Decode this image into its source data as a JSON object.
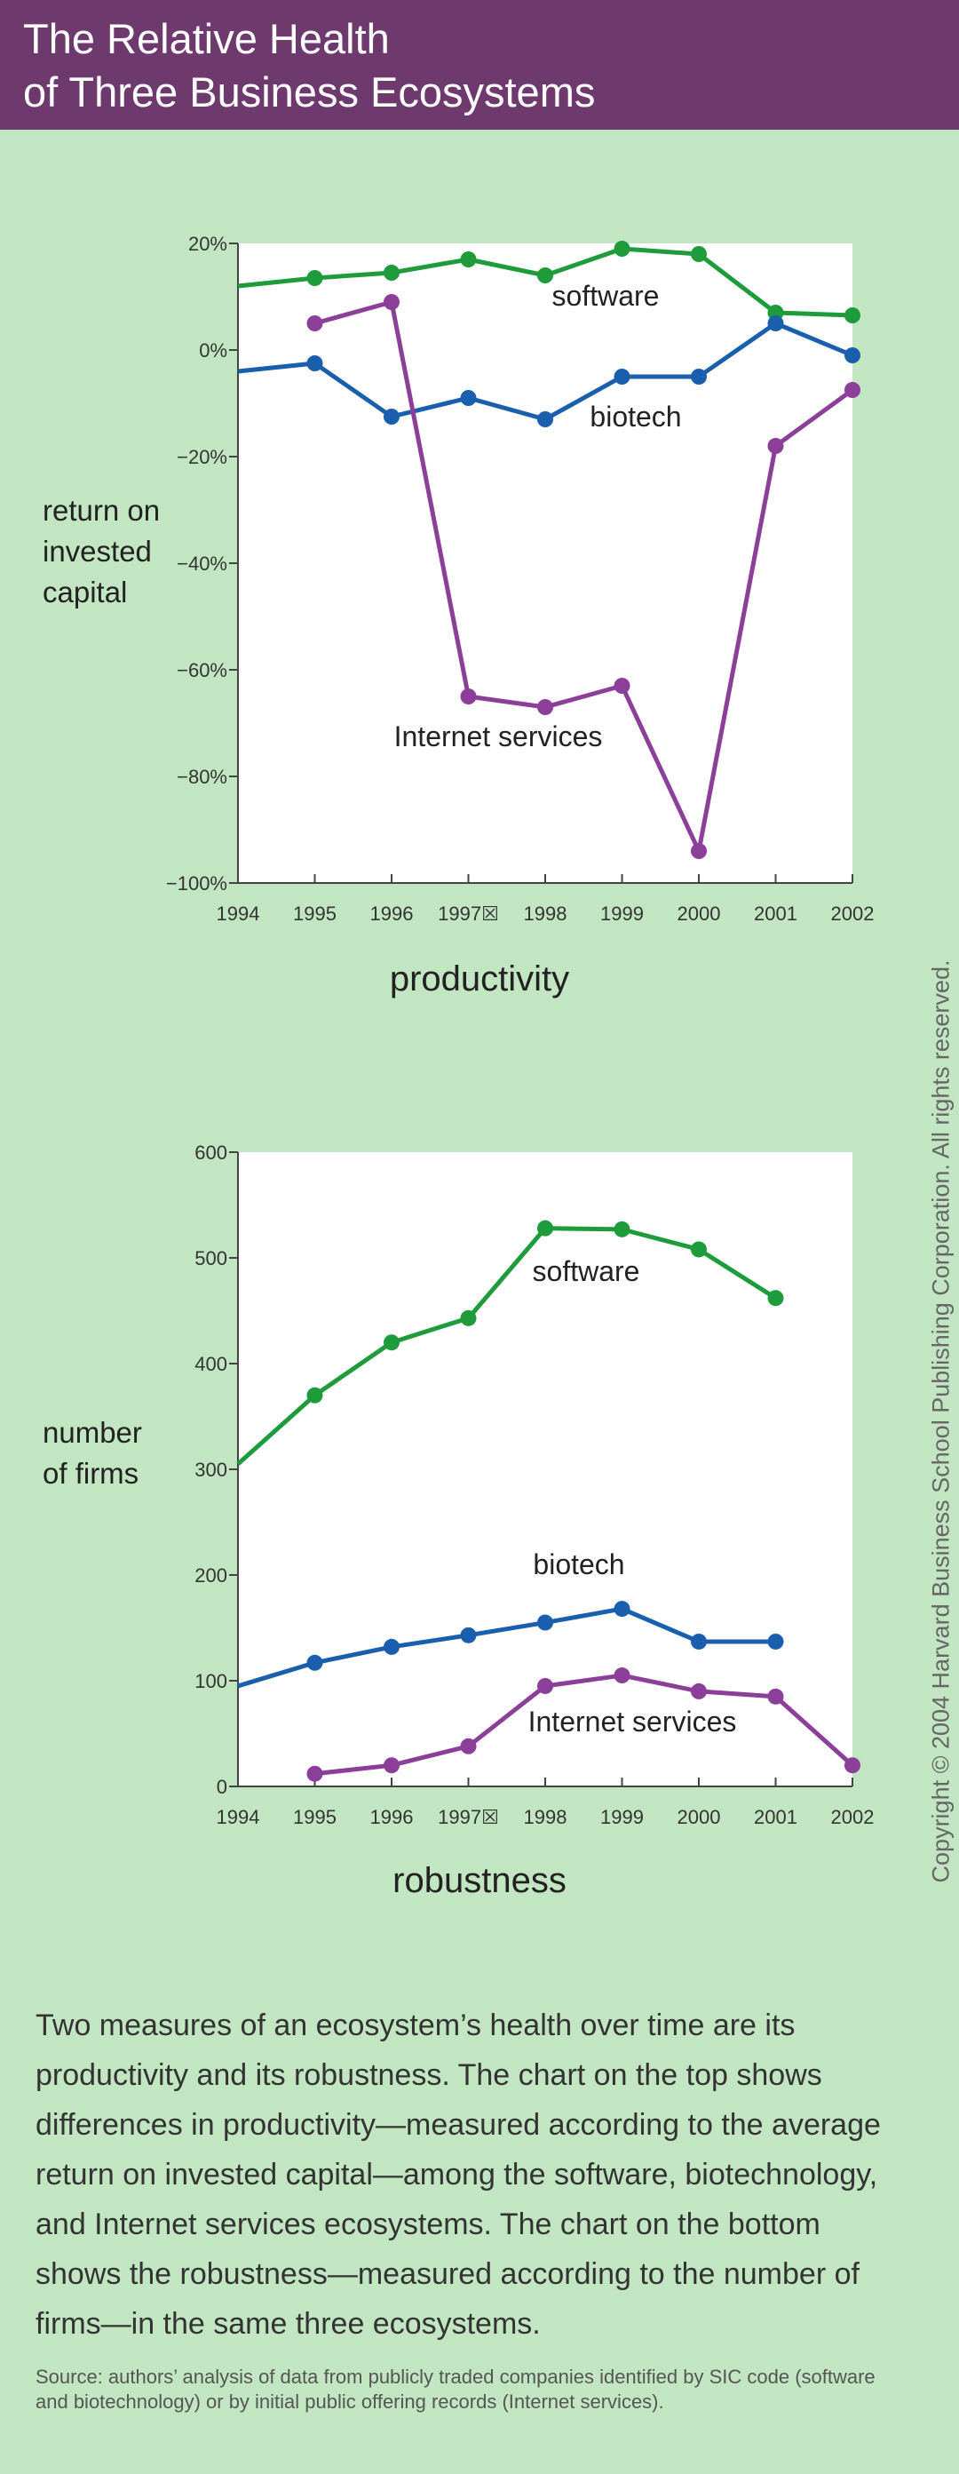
{
  "header": {
    "title_line1": "The Relative Health",
    "title_line2": "of Three Business Ecosystems"
  },
  "chart_data": [
    {
      "type": "line",
      "title": "productivity",
      "ylabel_lines": [
        "return on",
        "invested",
        "capital"
      ],
      "x": [
        "1994",
        "1995",
        "1996",
        "1997",
        "1998",
        "1999",
        "2000",
        "2001",
        "2002"
      ],
      "x_tick_labels": [
        "1994",
        "1995",
        "1996",
        "1997☒",
        "1998",
        "1999",
        "2000",
        "2001",
        "2002"
      ],
      "ylim": [
        -100,
        20
      ],
      "yticks": [
        20,
        0,
        -20,
        -40,
        -60,
        -80,
        -100
      ],
      "ytick_labels": [
        "20%",
        "0%",
        "−20%",
        "−40%",
        "−60%",
        "−80%",
        "−100%"
      ],
      "grid": false,
      "series": [
        {
          "name": "software",
          "color": "#1e9b3a",
          "values": [
            12,
            13.5,
            14.5,
            17,
            14,
            19,
            18,
            7,
            6.5
          ]
        },
        {
          "name": "biotech",
          "color": "#1a5fad",
          "values": [
            -4,
            -2.5,
            -12.5,
            -9,
            -13,
            -5,
            -5,
            5,
            -1
          ]
        },
        {
          "name": "Internet services",
          "color": "#8b3f98",
          "values": [
            null,
            5,
            9,
            -65,
            -67,
            -63,
            -94,
            -18,
            -7.5
          ]
        }
      ]
    },
    {
      "type": "line",
      "title": "robustness",
      "ylabel_lines": [
        "number",
        "of firms"
      ],
      "x": [
        "1994",
        "1995",
        "1996",
        "1997",
        "1998",
        "1999",
        "2000",
        "2001",
        "2002"
      ],
      "x_tick_labels": [
        "1994",
        "1995",
        "1996",
        "1997☒",
        "1998",
        "1999",
        "2000",
        "2001",
        "2002"
      ],
      "ylim": [
        0,
        600
      ],
      "yticks": [
        0,
        100,
        200,
        300,
        400,
        500,
        600
      ],
      "ytick_labels": [
        "0",
        "100",
        "200",
        "300",
        "400",
        "500",
        "600"
      ],
      "grid": false,
      "series": [
        {
          "name": "software",
          "color": "#1e9b3a",
          "values": [
            305,
            370,
            420,
            443,
            528,
            527,
            508,
            462,
            null
          ]
        },
        {
          "name": "biotech",
          "color": "#1a5fad",
          "values": [
            95,
            117,
            132,
            143,
            155,
            168,
            137,
            137,
            null
          ]
        },
        {
          "name": "Internet services",
          "color": "#8b3f98",
          "values": [
            null,
            12,
            20,
            38,
            95,
            105,
            90,
            85,
            20
          ]
        }
      ]
    }
  ],
  "description": "Two measures of an ecosystem’s health over time are its productivity and its robustness. The chart on the top shows differences in productivity—measured according to the average return on invested capital—among the software, biotechnology, and Internet services ecosystems. The chart on the bottom shows the robustness—measured according to the number of firms—in the same three ecosystems.",
  "source": "Source: authors’ analysis of data from publicly traded companies identified by SIC code (software and biotechnology) or by initial public offering records (Internet services).",
  "copyright": "Copyright © 2004 Harvard Business School Publishing Corporation. All rights reserved."
}
